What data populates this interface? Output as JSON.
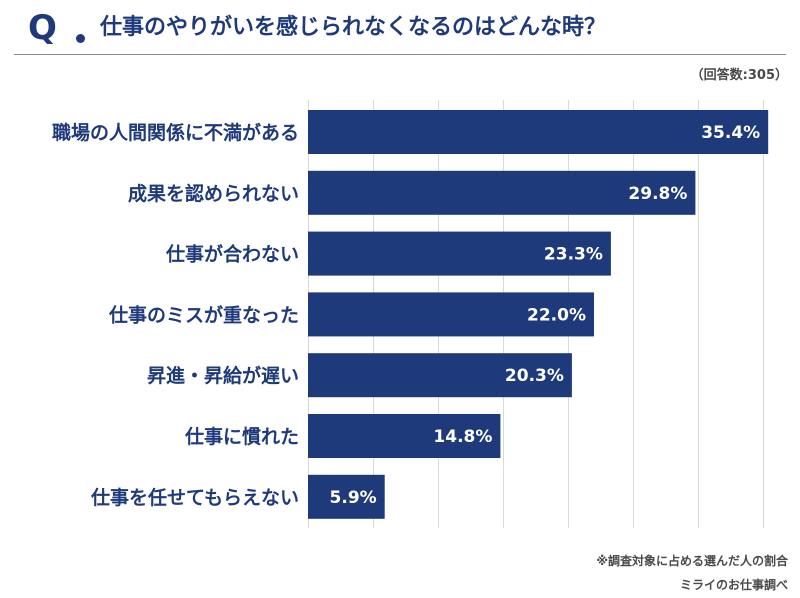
{
  "header": {
    "q_mark": "Q",
    "title": "仕事のやりがいを感じられなくなるのはどんな時？"
  },
  "respondents": "（回答数:305）",
  "chart_data": {
    "type": "bar",
    "orientation": "horizontal",
    "title": "仕事のやりがいを感じられなくなるのはどんな時？",
    "categories": [
      "職場の人間関係に不満がある",
      "成果を認められない",
      "仕事が合わない",
      "仕事のミスが重なった",
      "昇進・昇給が遅い",
      "仕事に慣れた",
      "仕事を任せてもらえない"
    ],
    "values": [
      35.4,
      29.8,
      23.3,
      22.0,
      20.3,
      14.8,
      5.9
    ],
    "value_labels": [
      "35.4%",
      "29.8%",
      "23.3%",
      "22.0%",
      "20.3%",
      "14.8%",
      "5.9%"
    ],
    "xlim": [
      0,
      40
    ],
    "grid": true,
    "bar_color": "#1f3a7a",
    "grid_color": "#d9d9d9"
  },
  "footer": {
    "note": "※調査対象に占める選んだ人の割合",
    "source": "ミライのお仕事調べ"
  }
}
